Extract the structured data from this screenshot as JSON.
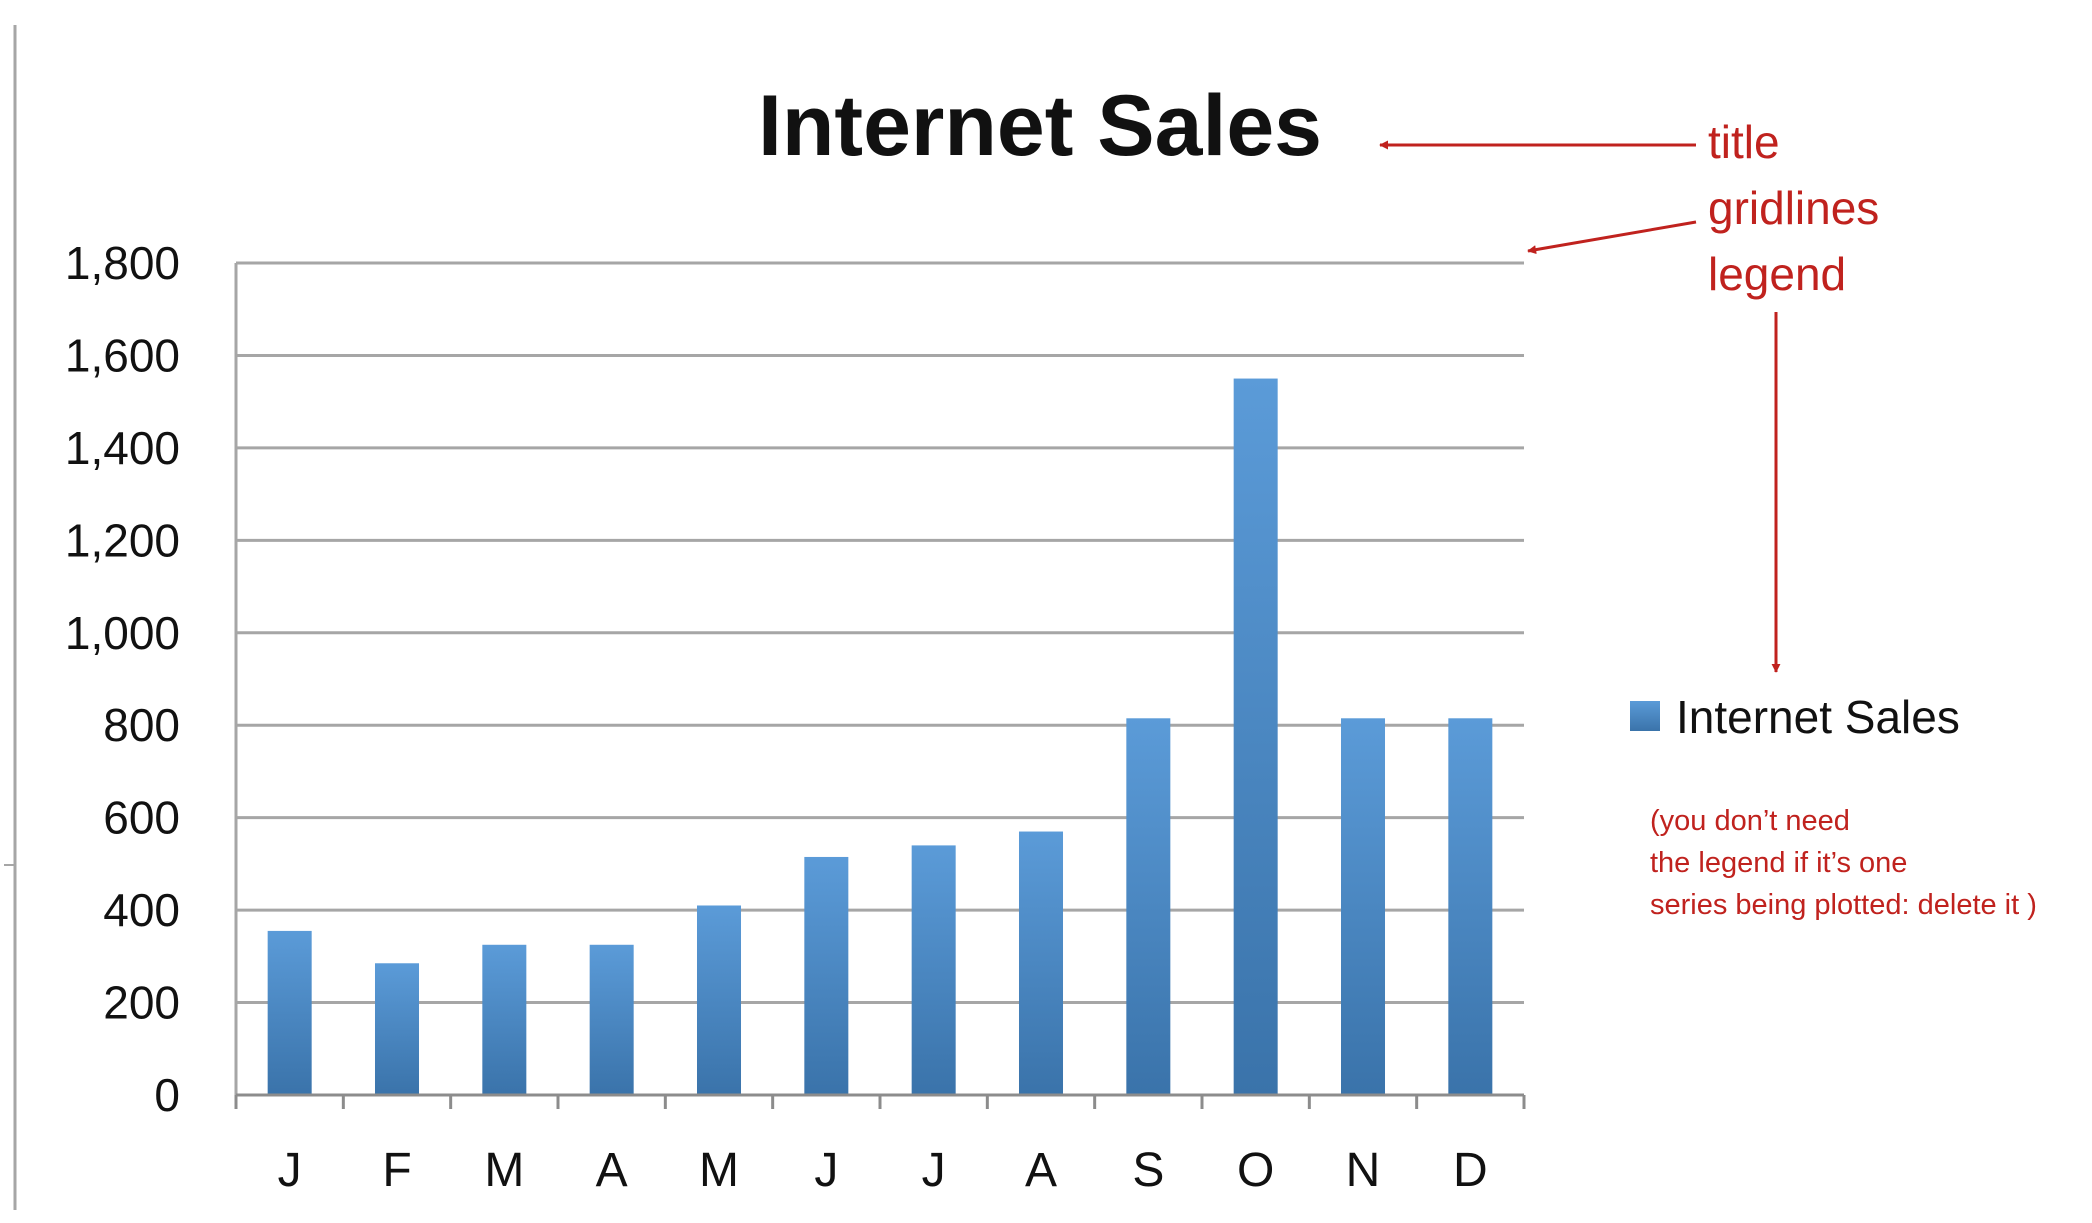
{
  "chart_data": {
    "type": "bar",
    "title": "Internet Sales",
    "categories": [
      "J",
      "F",
      "M",
      "A",
      "M",
      "J",
      "J",
      "A",
      "S",
      "O",
      "N",
      "D"
    ],
    "series": [
      {
        "name": "Internet Sales",
        "values": [
          355,
          285,
          325,
          325,
          410,
          515,
          540,
          570,
          815,
          1550,
          815,
          815
        ]
      }
    ],
    "xlabel": "",
    "ylabel": "",
    "ylim": [
      0,
      1800
    ],
    "yticks": [
      "0",
      "200",
      "400",
      "600",
      "800",
      "1,000",
      "1,200",
      "1,400",
      "1,600",
      "1,800"
    ],
    "grid": true,
    "legend": "right"
  },
  "annotations": {
    "lines": [
      "title",
      "gridlines",
      "legend"
    ],
    "note": [
      "(you don’t need",
      "the legend if it’s one",
      "series being plotted: delete it )"
    ]
  },
  "colors": {
    "bar_light": "#5b9bd8",
    "bar_dark": "#3a73aa",
    "annotation": "#c0221e",
    "grid": "#a6a6a6",
    "text": "#111111"
  }
}
